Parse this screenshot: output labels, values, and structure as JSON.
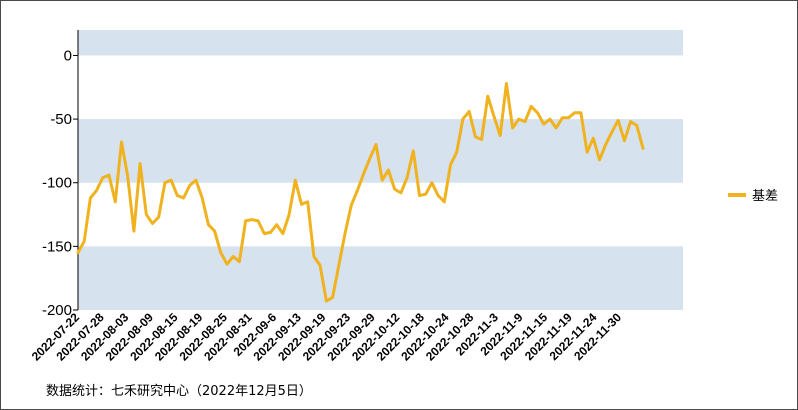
{
  "chart_data": {
    "type": "line",
    "title": "",
    "xlabel": "",
    "ylabel": "",
    "ylim": [
      -200,
      20
    ],
    "yticks": [
      0,
      -50,
      -100,
      -150,
      -200
    ],
    "band_fill": "#d6e2ee",
    "line_color": "#f0b21e",
    "legend_position": "right",
    "x_tick_labels": [
      "2022-07-22",
      "2022-07-28",
      "2022-08-03",
      "2022-08-09",
      "2022-08-15",
      "2022-08-19",
      "2022-08-25",
      "2022-08-31",
      "2022-09-6",
      "2022-09-13",
      "2022-09-19",
      "2022-09-23",
      "2022-09-29",
      "2022-10-12",
      "2022-10-18",
      "2022-10-24",
      "2022-10-28",
      "2022-11-3",
      "2022-11-9",
      "2022-11-15",
      "2022-11-19",
      "2022-11-24",
      "2022-11-30"
    ],
    "series": [
      {
        "name": "基差",
        "values": [
          -155,
          -146,
          -112,
          -106,
          -96,
          -94,
          -115,
          -68,
          -95,
          -138,
          -85,
          -125,
          -132,
          -127,
          -100,
          -98,
          -110,
          -112,
          -102,
          -98,
          -112,
          -133,
          -138,
          -155,
          -164,
          -158,
          -162,
          -130,
          -129,
          -130,
          -140,
          -139,
          -133,
          -140,
          -125,
          -98,
          -117,
          -115,
          -158,
          -165,
          -193,
          -190,
          -165,
          -140,
          -118,
          -106,
          -93,
          -81,
          -70,
          -98,
          -90,
          -105,
          -108,
          -96,
          -75,
          -110,
          -109,
          -100,
          -110,
          -115,
          -86,
          -76,
          -50,
          -44,
          -64,
          -66,
          -32,
          -48,
          -63,
          -22,
          -57,
          -50,
          -52,
          -40,
          -45,
          -54,
          -50,
          -57,
          -49,
          -49,
          -45,
          -45,
          -76,
          -65,
          -82,
          -70,
          -60,
          -51,
          -67,
          -52,
          -55,
          -73
        ]
      }
    ],
    "note": "数据统计：七禾研究中心（2022年12月5日）"
  }
}
